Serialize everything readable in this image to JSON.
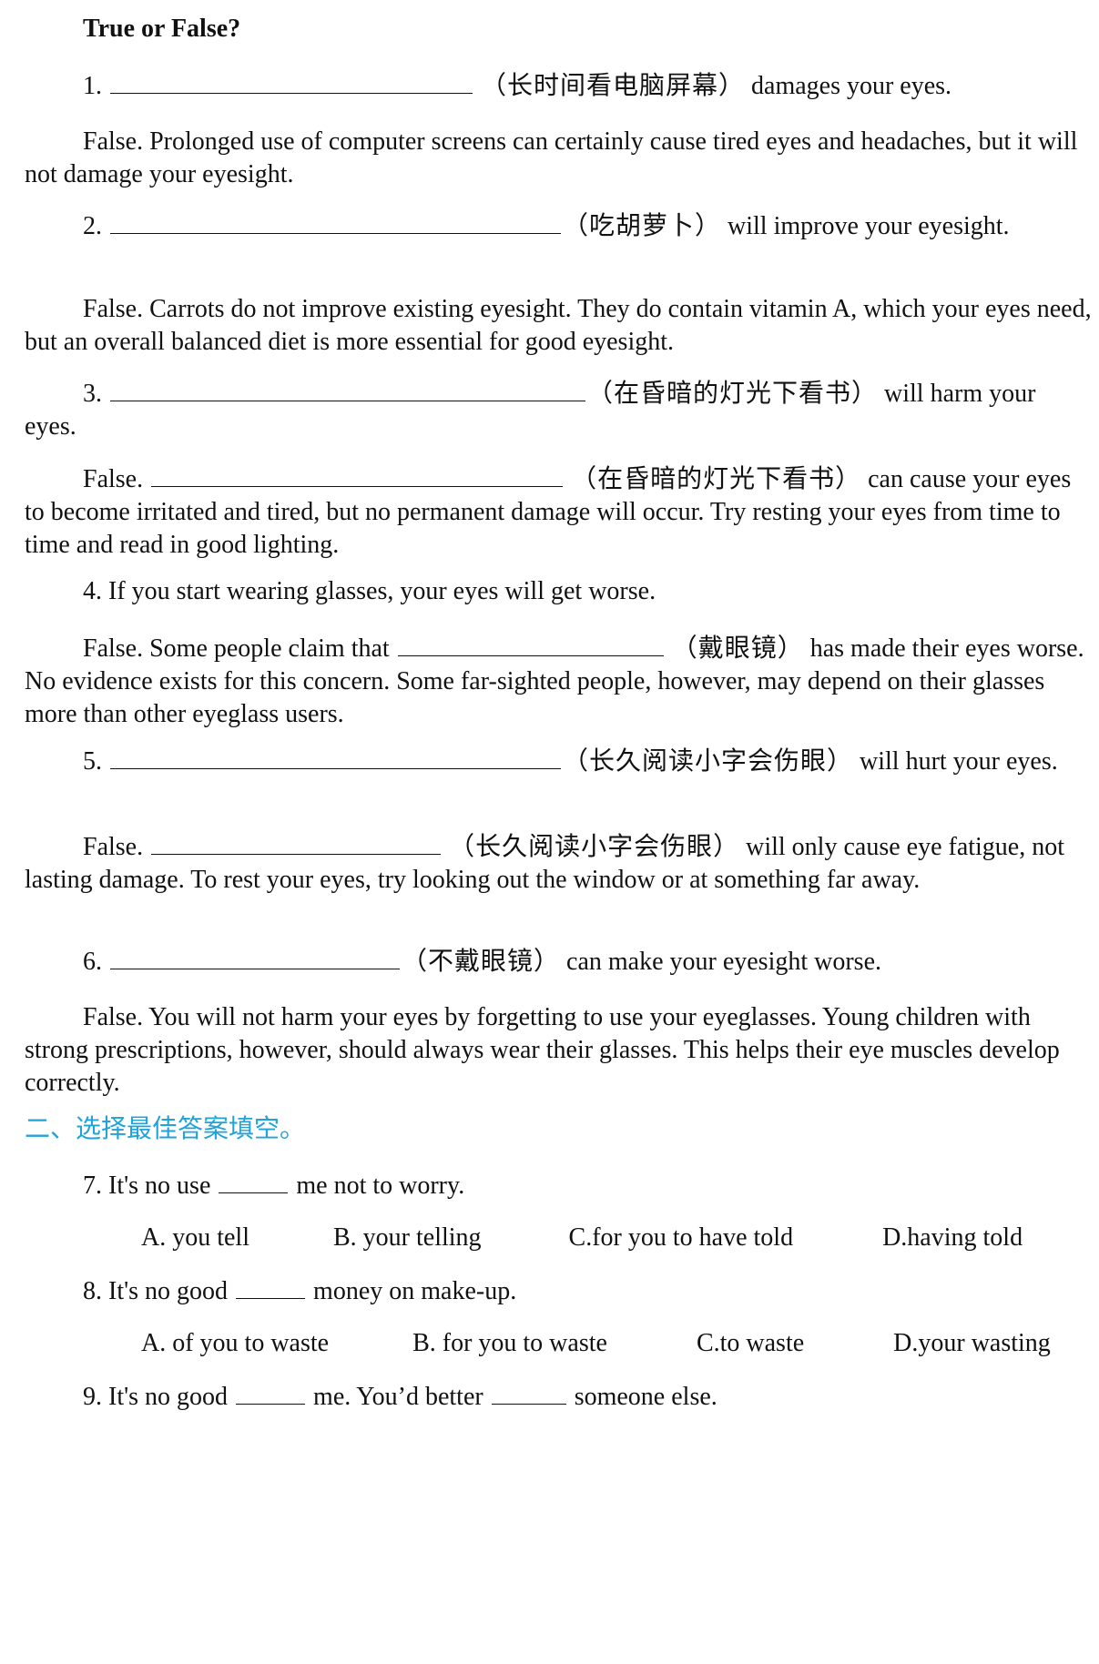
{
  "heading": "True or False?",
  "q1": {
    "num": "1.",
    "hint": "（长时间看电脑屏幕）",
    "rest": " damages your eyes.",
    "answer": "False. Prolonged use of computer screens can certainly cause tired eyes and headaches, but it will not damage your eyesight."
  },
  "q2": {
    "num": "2.",
    "hint": "（吃胡萝卜）",
    "rest": " will improve your eyesight.",
    "answer": "False. Carrots do not improve existing eyesight. They do contain vitamin A, which your eyes need, but an overall balanced diet is more essential for good eyesight."
  },
  "q3": {
    "num": "3.",
    "hint": "（在昏暗的灯光下看书）",
    "rest": " will harm your eyes.",
    "answer_lead": "False.",
    "answer_hint": "（在昏暗的灯光下看书）",
    "answer_rest": " can cause your eyes to become irritated and tired, but no permanent damage will occur. Try resting your eyes from time to time and read in good lighting."
  },
  "q4": {
    "statement": "4. If you start wearing glasses, your eyes will get worse.",
    "answer_lead": "False. Some people claim that",
    "answer_hint": "（戴眼镜）",
    "answer_rest": " has made their eyes worse. No evidence exists for this concern. Some far-sighted people, however, may depend on their glasses more than other eyeglass users."
  },
  "q5": {
    "num": "5.",
    "hint": "（长久阅读小字会伤眼）",
    "rest": " will hurt your eyes.",
    "answer_lead": "False.",
    "answer_hint": "（长久阅读小字会伤眼）",
    "answer_rest": " will only cause eye fatigue, not lasting damage. To rest your eyes, try looking out the window or at something far away."
  },
  "q6": {
    "num": "6.",
    "hint": "（不戴眼镜）",
    "rest": " can make your eyesight worse.",
    "answer": "False. You will not harm your eyes by forgetting to use your eyeglasses. Young children with strong prescriptions, however, should always wear their glasses. This helps their eye muscles develop correctly."
  },
  "section2_title": "二、选择最佳答案填空。",
  "q7": {
    "before": "7. It's no use",
    "after": "me not to worry.",
    "options": [
      "A. you tell",
      "B. your telling",
      "C.for you to have told",
      "D.having told"
    ]
  },
  "q8": {
    "before": "8. It's no good",
    "after": "money on make-up.",
    "options": [
      "A. of you to waste",
      "B. for you to waste",
      "C.to waste",
      "D.your wasting"
    ]
  },
  "q9": {
    "before": "9. It's no good",
    "middle": "me. You’d better",
    "after": "someone else."
  }
}
